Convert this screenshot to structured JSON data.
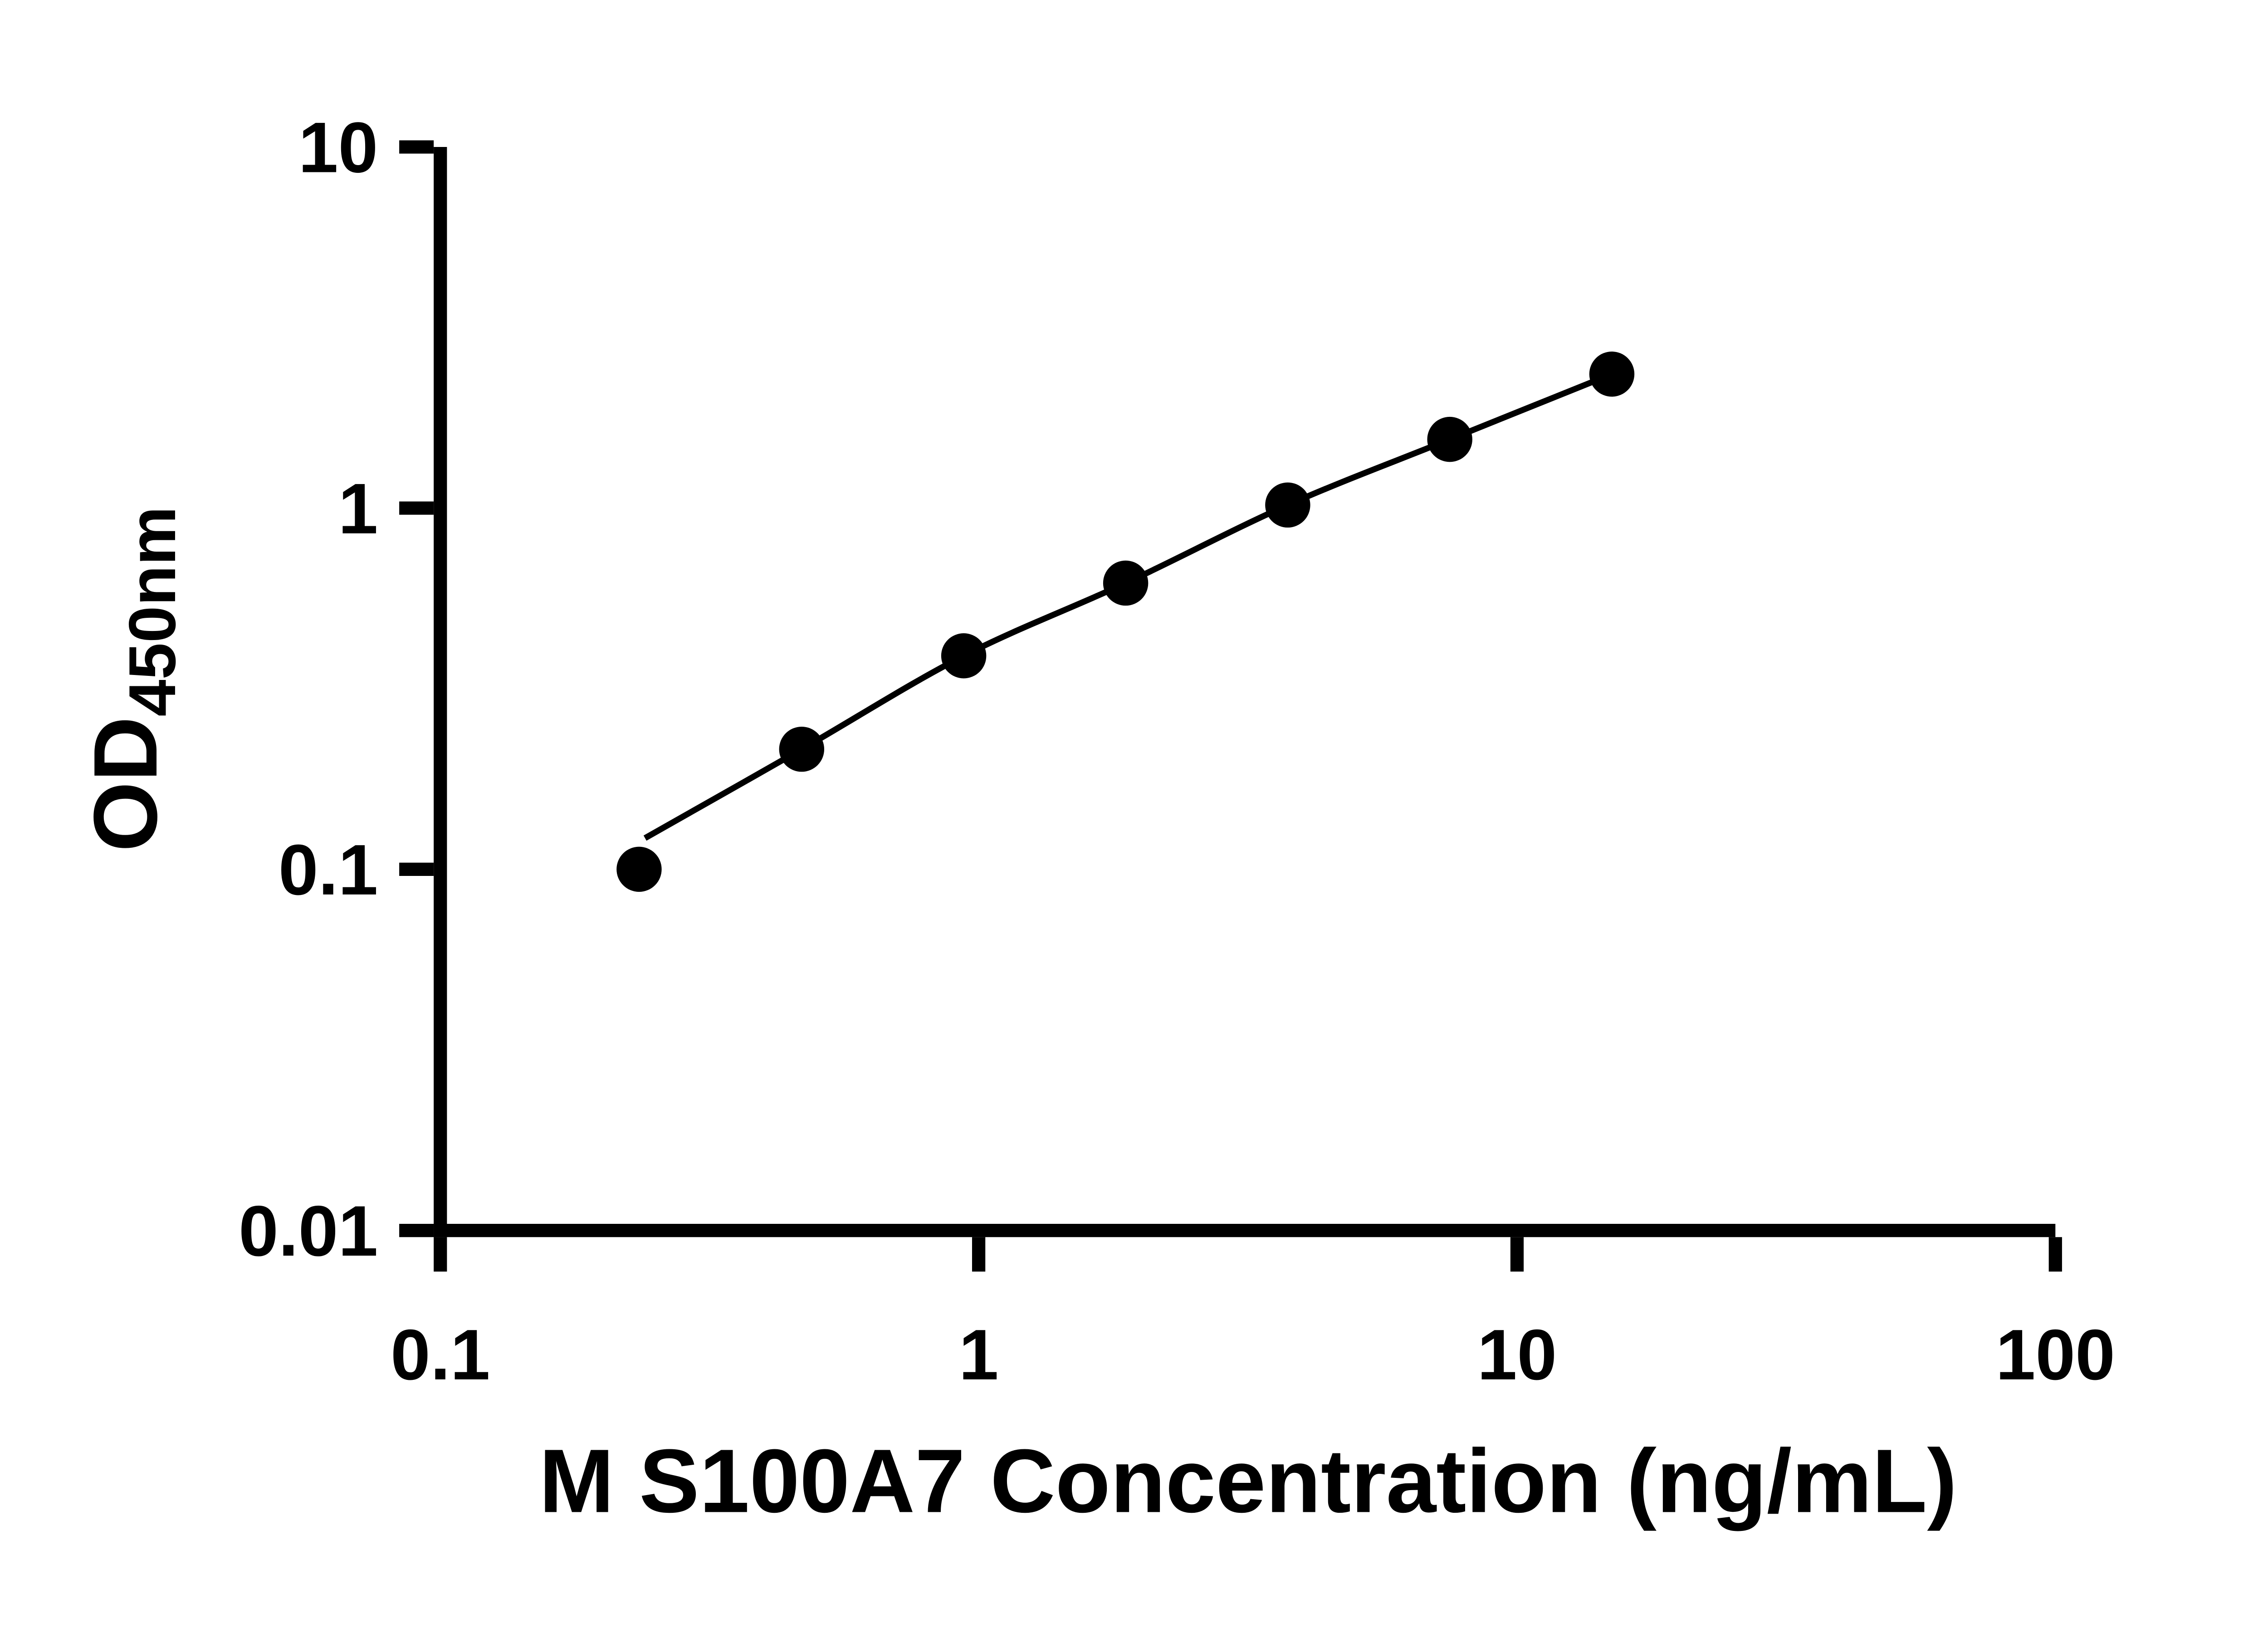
{
  "chart_data": {
    "type": "scatter",
    "title": "",
    "xlabel": "M S100A7 Concentration (ng/mL)",
    "ylabel_main": "OD",
    "ylabel_sub": "450nm",
    "x_scale": "log",
    "y_scale": "log",
    "xlim": [
      0.1,
      100
    ],
    "ylim": [
      0.01,
      10
    ],
    "grid": false,
    "legend": "none",
    "x_ticks": [
      {
        "value": 0.1,
        "label": "0.1"
      },
      {
        "value": 1,
        "label": "1"
      },
      {
        "value": 10,
        "label": "10"
      },
      {
        "value": 100,
        "label": "100"
      }
    ],
    "y_ticks": [
      {
        "value": 0.01,
        "label": "0.01"
      },
      {
        "value": 0.1,
        "label": "0.1"
      },
      {
        "value": 1,
        "label": "1"
      },
      {
        "value": 10,
        "label": "10"
      }
    ],
    "series": [
      {
        "name": "standard-curve",
        "marker": "circle",
        "marker_color": "#000000",
        "line_color": "#000000",
        "points": [
          {
            "x": 0.234,
            "y": 0.1
          },
          {
            "x": 0.469,
            "y": 0.215
          },
          {
            "x": 0.938,
            "y": 0.39
          },
          {
            "x": 1.875,
            "y": 0.62
          },
          {
            "x": 3.75,
            "y": 1.02
          },
          {
            "x": 7.5,
            "y": 1.55
          },
          {
            "x": 15,
            "y": 2.35
          }
        ],
        "fit_curve": [
          {
            "x": 0.24,
            "y": 0.122
          },
          {
            "x": 0.469,
            "y": 0.215
          },
          {
            "x": 0.938,
            "y": 0.39
          },
          {
            "x": 1.875,
            "y": 0.62
          },
          {
            "x": 3.75,
            "y": 1.02
          },
          {
            "x": 7.5,
            "y": 1.55
          },
          {
            "x": 15,
            "y": 2.35
          }
        ]
      }
    ],
    "colors": {
      "axis": "#000000",
      "text": "#000000",
      "background": "#ffffff"
    }
  }
}
